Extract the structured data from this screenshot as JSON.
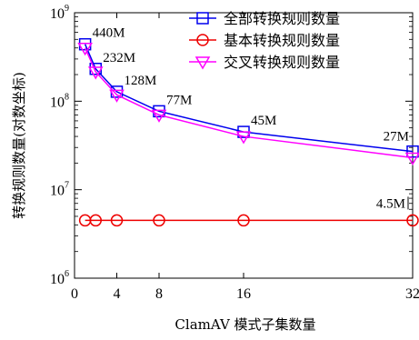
{
  "chart_data": {
    "type": "line",
    "x": [
      1,
      2,
      4,
      8,
      16,
      32
    ],
    "x_ticks": [
      "0",
      "4",
      "8",
      "16",
      "32"
    ],
    "y_scale": "log",
    "y_ticks": [
      {
        "base": "10",
        "exp": "6"
      },
      {
        "base": "10",
        "exp": "7"
      },
      {
        "base": "10",
        "exp": "8"
      },
      {
        "base": "10",
        "exp": "9"
      }
    ],
    "xlim": [
      0,
      32
    ],
    "ylim": [
      1000000,
      1000000000
    ],
    "xlabel": "ClamAV 模式子集数量",
    "ylabel": "转换规则数量(对数坐标)",
    "legend_position": "top-right",
    "series": [
      {
        "name": "全部转换规则数量",
        "color": "#0000ee",
        "marker": "square",
        "values": [
          440000000,
          232000000,
          128000000,
          77000000,
          45000000,
          27000000
        ]
      },
      {
        "name": "基本转换规则数量",
        "color": "#ee0000",
        "marker": "circle",
        "values": [
          4500000,
          4500000,
          4500000,
          4500000,
          4500000,
          4500000
        ]
      },
      {
        "name": "交叉转换规则数量",
        "color": "#ff00ff",
        "marker": "triangle-down",
        "values": [
          400000000,
          215000000,
          118000000,
          70000000,
          40000000,
          23000000
        ]
      }
    ],
    "annotations": [
      {
        "text": "440M",
        "x": 1,
        "y": 440000000
      },
      {
        "text": "232M",
        "x": 2,
        "y": 232000000
      },
      {
        "text": "128M",
        "x": 4,
        "y": 128000000
      },
      {
        "text": "77M",
        "x": 8,
        "y": 77000000
      },
      {
        "text": "45M",
        "x": 16,
        "y": 45000000
      },
      {
        "text": "27M",
        "x": 32,
        "y": 27000000
      },
      {
        "text": "4.5M",
        "x": 32,
        "y": 4500000
      }
    ]
  }
}
